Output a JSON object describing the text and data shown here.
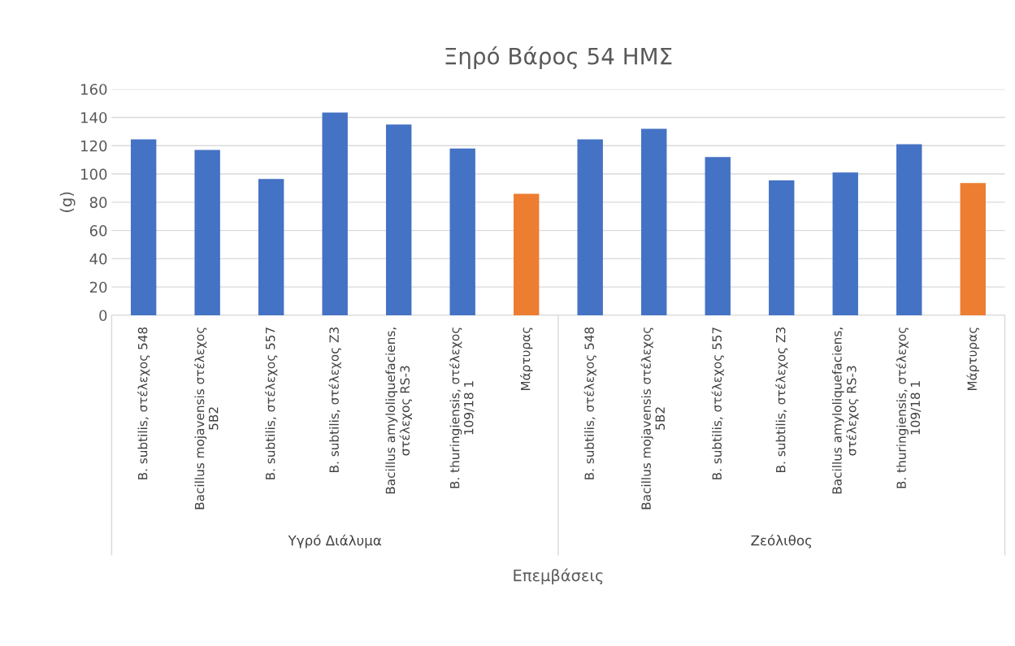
{
  "chart_data": {
    "type": "bar",
    "title": "Ξηρό Βάρος 54 ΗΜΣ",
    "xlabel": "Επεμβάσεις",
    "ylabel": "(g)",
    "categories": [
      "B. subtilis, στέλεχος 548",
      "Bacillus mojavensis στέλεχος\n5B2",
      "B. subtilis, στέλεχος 557",
      "B. subtilis, στέλεχος Z3",
      "Bacillus amyloliquefaciens,\nστέλεχος RS-3",
      "B. thuringiensis, στέλεχος\n109/18 1",
      "Μάρτυρας",
      "B. subtilis, στέλεχος 548",
      "Bacillus mojavensis στέλεχος\n5B2",
      "B. subtilis, στέλεχος 557",
      "B. subtilis, στέλεχος Z3",
      "Bacillus amyloliquefaciens,\nστέλεχος RS-3",
      "B. thuringiensis, στέλεχος\n109/18 1",
      "Μάρτυρας"
    ],
    "values": [
      124.5,
      117,
      96.5,
      143.5,
      135,
      118,
      86,
      124.5,
      132,
      112,
      95.5,
      101,
      121,
      93.5
    ],
    "colors": [
      "#4472c4",
      "#4472c4",
      "#4472c4",
      "#4472c4",
      "#4472c4",
      "#4472c4",
      "#ed7d31",
      "#4472c4",
      "#4472c4",
      "#4472c4",
      "#4472c4",
      "#4472c4",
      "#4472c4",
      "#ed7d31"
    ],
    "annotations": [
      "Υγρό Διάλυμα",
      "Ζεόλιθος"
    ],
    "ylim": [
      0,
      160
    ],
    "yticks": [
      0,
      20,
      40,
      60,
      80,
      100,
      120,
      140,
      160
    ],
    "grid": "y",
    "legend": false
  }
}
